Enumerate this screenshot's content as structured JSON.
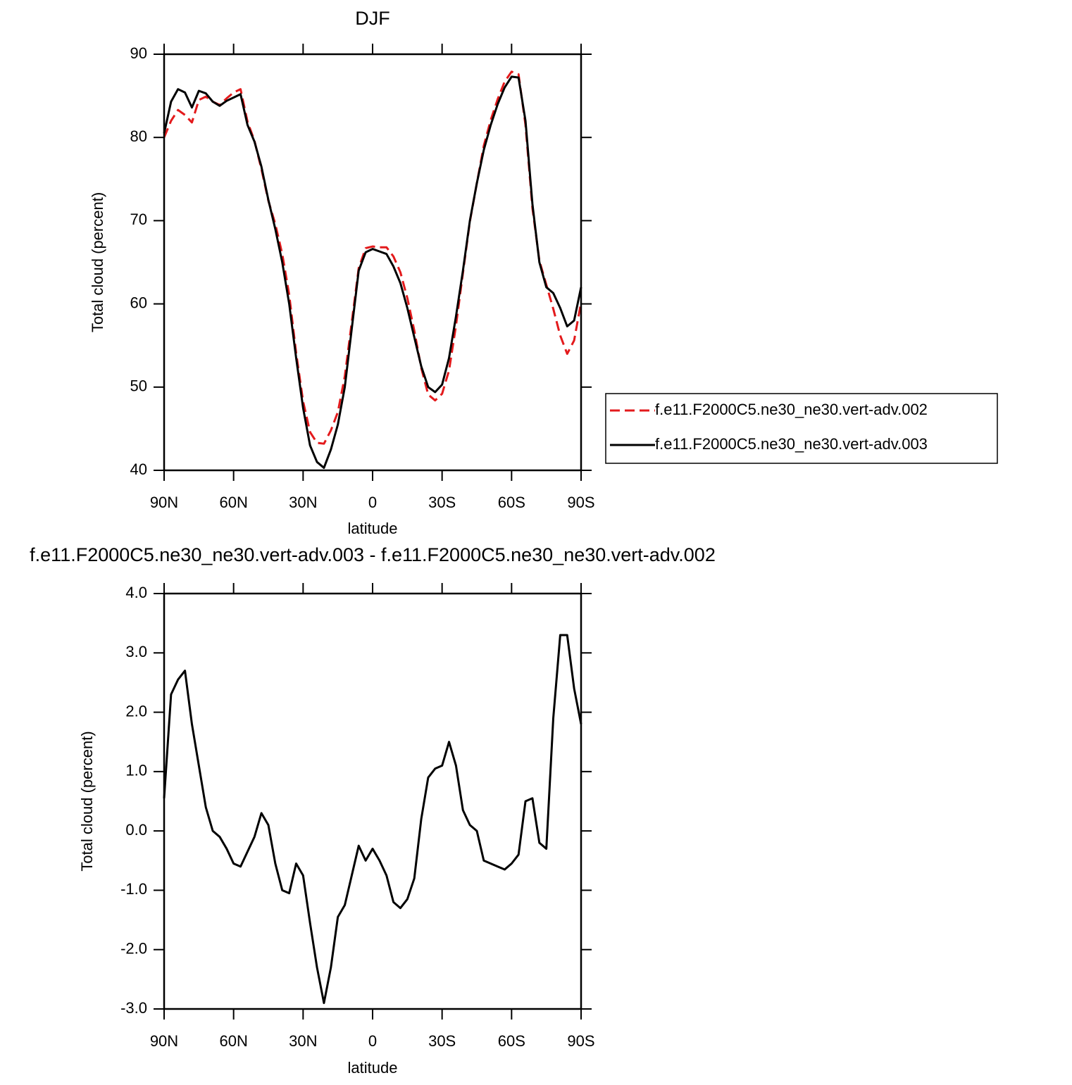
{
  "chart_data": [
    {
      "type": "line",
      "title": "DJF",
      "xlabel": "latitude",
      "ylabel": "Total cloud (percent)",
      "x": [
        90,
        87,
        84,
        81,
        78,
        75,
        72,
        69,
        66,
        63,
        60,
        57,
        54,
        51,
        48,
        45,
        42,
        39,
        36,
        33,
        30,
        27,
        24,
        21,
        18,
        15,
        12,
        9,
        6,
        3,
        0,
        -3,
        -6,
        -9,
        -12,
        -15,
        -18,
        -21,
        -24,
        -27,
        -30,
        -33,
        -36,
        -39,
        -42,
        -45,
        -48,
        -51,
        -54,
        -57,
        -60,
        -63,
        -66,
        -69,
        -72,
        -75,
        -78,
        -81,
        -84,
        -87,
        -90
      ],
      "series": [
        {
          "name": "f.e11.F2000C5.ne30_ne30.vert-adv.002",
          "color": "#e31a1c",
          "dashed": true,
          "values": [
            80.0,
            82.0,
            83.3,
            82.7,
            81.8,
            84.5,
            84.9,
            84.3,
            83.9,
            84.7,
            85.4,
            85.8,
            81.9,
            79.6,
            76.2,
            72.4,
            69.6,
            66.0,
            61.1,
            54.1,
            48.3,
            44.6,
            43.3,
            43.2,
            44.8,
            47.0,
            51.3,
            57.8,
            64.3,
            66.7,
            66.9,
            66.8,
            66.8,
            65.7,
            63.8,
            60.7,
            56.8,
            52.3,
            49.1,
            48.4,
            49.2,
            52.0,
            57.4,
            63.7,
            69.9,
            74.5,
            79.0,
            82.1,
            84.6,
            86.7,
            87.9,
            87.6,
            81.5,
            71.5,
            65.2,
            62.3,
            59.4,
            56.2,
            54.0,
            55.6,
            60.2
          ]
        },
        {
          "name": "f.e11.F2000C5.ne30_ne30.vert-adv.003",
          "color": "#000000",
          "dashed": false,
          "values": [
            80.5,
            84.3,
            85.8,
            85.4,
            83.6,
            85.6,
            85.3,
            84.3,
            83.8,
            84.4,
            84.8,
            85.2,
            81.5,
            79.5,
            76.5,
            72.5,
            69.0,
            65.0,
            60.0,
            53.5,
            47.5,
            43.0,
            41.0,
            40.3,
            42.5,
            45.5,
            50.0,
            57.0,
            64.0,
            66.2,
            66.6,
            66.3,
            66.0,
            64.5,
            62.5,
            59.5,
            56.0,
            52.5,
            50.0,
            49.4,
            50.3,
            53.5,
            58.5,
            64.0,
            70.0,
            74.5,
            78.5,
            81.5,
            84.0,
            86.0,
            87.3,
            87.2,
            82.0,
            72.0,
            65.0,
            62.0,
            61.3,
            59.5,
            57.3,
            58.0,
            62.0
          ]
        }
      ],
      "xlim": [
        90,
        -90
      ],
      "xticks": [
        {
          "value": 90,
          "label": "90N"
        },
        {
          "value": 60,
          "label": "60N"
        },
        {
          "value": 30,
          "label": "30N"
        },
        0,
        {
          "value": -30,
          "label": "30S"
        },
        {
          "value": -60,
          "label": "60S"
        },
        {
          "value": -90,
          "label": "90S"
        }
      ],
      "ylim": [
        40,
        90
      ],
      "yticks": [
        40,
        50,
        60,
        70,
        80,
        90
      ],
      "legend": "right"
    },
    {
      "type": "line",
      "title": "f.e11.F2000C5.ne30_ne30.vert-adv.003 - f.e11.F2000C5.ne30_ne30.vert-adv.002",
      "xlabel": "latitude",
      "ylabel": "Total cloud (percent)",
      "x": [
        90,
        87,
        84,
        81,
        78,
        75,
        72,
        69,
        66,
        63,
        60,
        57,
        54,
        51,
        48,
        45,
        42,
        39,
        36,
        33,
        30,
        27,
        24,
        21,
        18,
        15,
        12,
        9,
        6,
        3,
        0,
        -3,
        -6,
        -9,
        -12,
        -15,
        -18,
        -21,
        -24,
        -27,
        -30,
        -33,
        -36,
        -39,
        -42,
        -45,
        -48,
        -51,
        -54,
        -57,
        -60,
        -63,
        -66,
        -69,
        -72,
        -75,
        -78,
        -81,
        -84,
        -87,
        -90
      ],
      "series": [
        {
          "color": "#000000",
          "dashed": false,
          "values": [
            0.55,
            2.3,
            2.55,
            2.7,
            1.8,
            1.1,
            0.4,
            0.0,
            -0.1,
            -0.3,
            -0.55,
            -0.6,
            -0.35,
            -0.1,
            0.3,
            0.1,
            -0.55,
            -1.0,
            -1.05,
            -0.55,
            -0.75,
            -1.55,
            -2.3,
            -2.9,
            -2.3,
            -1.45,
            -1.25,
            -0.75,
            -0.25,
            -0.5,
            -0.3,
            -0.5,
            -0.75,
            -1.2,
            -1.3,
            -1.15,
            -0.8,
            0.2,
            0.9,
            1.05,
            1.1,
            1.5,
            1.1,
            0.35,
            0.1,
            0.0,
            -0.5,
            -0.55,
            -0.6,
            -0.65,
            -0.55,
            -0.4,
            0.5,
            0.55,
            -0.2,
            -0.3,
            1.9,
            3.3,
            3.3,
            2.4,
            1.8
          ]
        }
      ],
      "xlim": [
        90,
        -90
      ],
      "xticks": [
        {
          "value": 90,
          "label": "90N"
        },
        {
          "value": 60,
          "label": "60N"
        },
        {
          "value": 30,
          "label": "30N"
        },
        0,
        {
          "value": -30,
          "label": "30S"
        },
        {
          "value": -60,
          "label": "60S"
        },
        {
          "value": -90,
          "label": "90S"
        }
      ],
      "ylim": [
        -3,
        4
      ],
      "yticks": [
        {
          "value": -3,
          "label": "-3.0"
        },
        {
          "value": -2,
          "label": "-2.0"
        },
        {
          "value": -1,
          "label": "-1.0"
        },
        {
          "value": 0,
          "label": "0.0"
        },
        {
          "value": 1,
          "label": "1.0"
        },
        {
          "value": 2,
          "label": "2.0"
        },
        {
          "value": 3,
          "label": "3.0"
        },
        {
          "value": 4,
          "label": "4.0"
        }
      ]
    }
  ]
}
